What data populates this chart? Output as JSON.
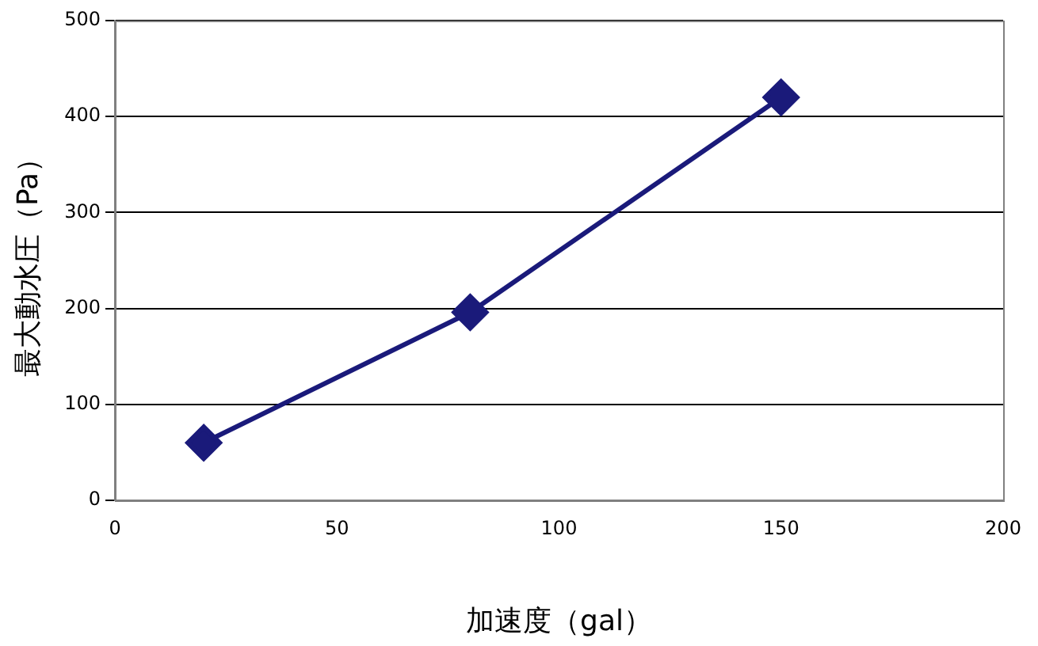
{
  "chart_data": {
    "type": "line",
    "xlabel": "加速度（gal）",
    "ylabel": "最大動水圧（Pa）",
    "x": [
      20,
      80,
      150
    ],
    "series": [
      {
        "color": "#1a1a7a",
        "values": [
          60,
          196,
          420
        ]
      }
    ],
    "xlim": [
      0,
      200
    ],
    "xticks": [
      0,
      50,
      100,
      150,
      200
    ],
    "ylim": [
      0,
      500
    ],
    "yticks": [
      0,
      100,
      200,
      300,
      400,
      500
    ],
    "grid": "y",
    "legend": false,
    "marker": "diamond",
    "line_style": "solid"
  }
}
